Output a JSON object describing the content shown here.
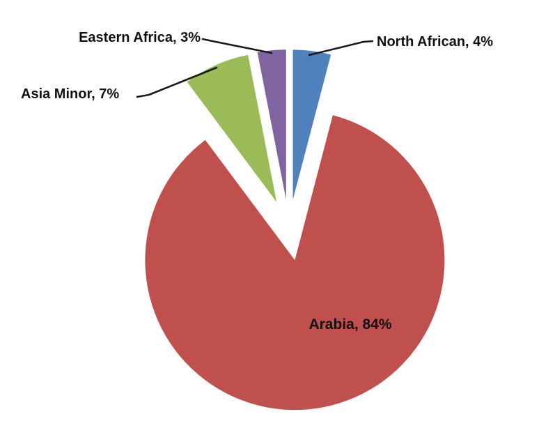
{
  "chart_data": {
    "type": "pie",
    "title": "",
    "exploded": true,
    "start_angle_deg": 0,
    "direction": "clockwise",
    "background": "#ffffff",
    "leader_line_color": "#1a1a1a",
    "label_text_color": "#111111",
    "labels_shown": "category-and-percent",
    "categories": [
      "North African",
      "Arabia",
      "Asia Minor",
      "Eastern Africa"
    ],
    "values": [
      4,
      84,
      7,
      3
    ],
    "slices": [
      {
        "label": "North African",
        "value": 4,
        "display": "North African, 4%",
        "color": "#4F81BD"
      },
      {
        "label": "Arabia",
        "value": 84,
        "display": "Arabia, 84%",
        "color": "#C0504D"
      },
      {
        "label": "Asia Minor",
        "value": 7,
        "display": "Asia Minor, 7%",
        "color": "#9BBB59"
      },
      {
        "label": "Eastern Africa",
        "value": 3,
        "display": "Eastern Africa, 3%",
        "color": "#8064A2"
      }
    ]
  }
}
